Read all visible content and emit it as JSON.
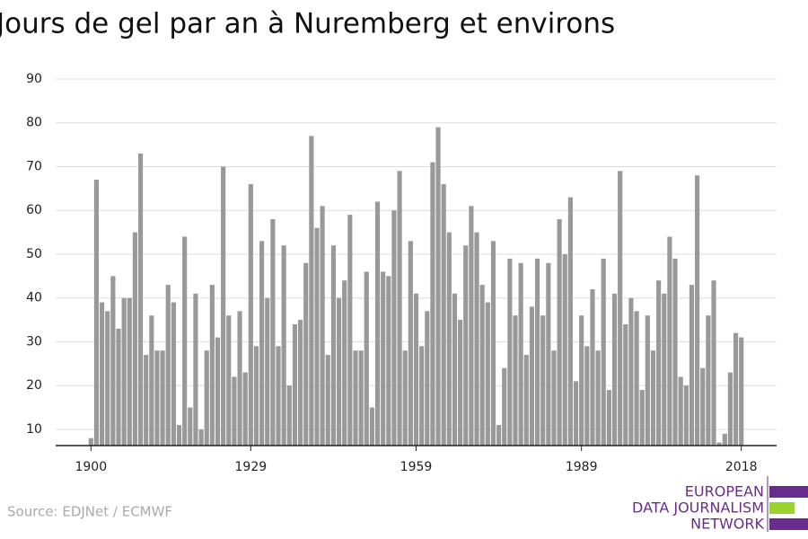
{
  "chart_data": {
    "type": "bar",
    "title": "Jours de gel par an à Nuremberg et environs",
    "source": "Source: EDJNet / ECMWF",
    "logo": [
      "EUROPEAN",
      "DATA JOURNALISM",
      "NETWORK"
    ],
    "color": "#999999",
    "x": [
      1900,
      1901,
      1902,
      1903,
      1904,
      1905,
      1906,
      1907,
      1908,
      1909,
      1910,
      1911,
      1912,
      1913,
      1914,
      1915,
      1916,
      1917,
      1918,
      1919,
      1920,
      1921,
      1922,
      1923,
      1924,
      1925,
      1926,
      1927,
      1928,
      1929,
      1930,
      1931,
      1932,
      1933,
      1934,
      1935,
      1936,
      1937,
      1938,
      1939,
      1940,
      1941,
      1942,
      1943,
      1944,
      1945,
      1946,
      1947,
      1948,
      1949,
      1950,
      1951,
      1952,
      1953,
      1954,
      1955,
      1956,
      1957,
      1958,
      1959,
      1960,
      1961,
      1962,
      1963,
      1964,
      1965,
      1966,
      1967,
      1968,
      1969,
      1970,
      1971,
      1972,
      1973,
      1974,
      1975,
      1976,
      1977,
      1978,
      1979,
      1980,
      1981,
      1982,
      1983,
      1984,
      1985,
      1986,
      1987,
      1988,
      1989,
      1990,
      1991,
      1992,
      1993,
      1994,
      1995,
      1996,
      1997,
      1998,
      1999,
      2000,
      2001,
      2002,
      2003,
      2004,
      2005,
      2006,
      2007,
      2008,
      2009,
      2010,
      2011,
      2012,
      2013,
      2014,
      2015,
      2016,
      2017,
      2018
    ],
    "values": [
      8,
      67,
      39,
      37,
      45,
      33,
      40,
      40,
      55,
      73,
      27,
      36,
      28,
      28,
      43,
      39,
      11,
      54,
      15,
      41,
      10,
      28,
      43,
      31,
      70,
      36,
      22,
      37,
      23,
      66,
      29,
      53,
      40,
      58,
      29,
      52,
      20,
      34,
      35,
      48,
      77,
      56,
      61,
      27,
      52,
      40,
      44,
      59,
      28,
      28,
      46,
      15,
      62,
      46,
      45,
      60,
      69,
      28,
      53,
      41,
      29,
      37,
      71,
      79,
      66,
      55,
      41,
      35,
      52,
      61,
      55,
      43,
      39,
      53,
      11,
      24,
      49,
      36,
      48,
      27,
      38,
      49,
      36,
      48,
      28,
      58,
      50,
      63,
      21,
      36,
      29,
      42,
      28,
      49,
      19,
      41,
      69,
      34,
      40,
      37,
      19,
      36,
      28,
      44,
      41,
      54,
      49,
      22,
      20,
      43,
      68,
      24,
      36,
      44,
      7,
      9,
      23,
      32,
      31
    ],
    "xlim": [
      1893.6,
      2024.4
    ],
    "xticks": [
      1900,
      1929,
      1959,
      1989,
      2018
    ],
    "ylim": [
      6.3,
      91
    ],
    "yticks": [
      10,
      20,
      30,
      40,
      50,
      60,
      70,
      80,
      90
    ],
    "grid": true
  }
}
